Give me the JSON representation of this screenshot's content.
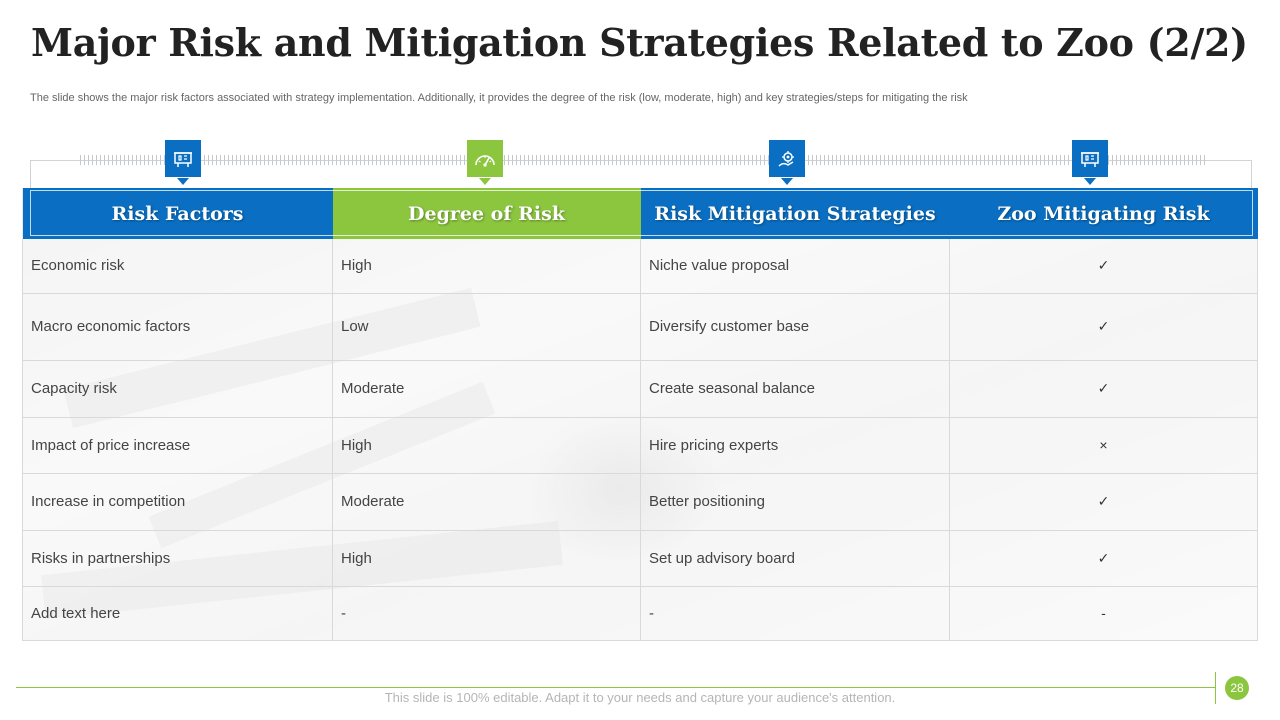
{
  "title": "Major Risk and Mitigation Strategies Related to Zoo (2/2)",
  "subtitle": "The slide shows the major risk factors associated with strategy implementation. Additionally, it provides the degree of the risk (low, moderate, high) and key strategies/steps for mitigating the risk",
  "icons": [
    "zoo-sign-icon",
    "gauge-icon",
    "hand-gear-icon",
    "zoo-sign-icon"
  ],
  "colors": {
    "blue": "#0a6fc2",
    "green": "#8cc63f"
  },
  "table": {
    "headers": [
      "Risk Factors",
      "Degree of Risk",
      "Risk Mitigation Strategies",
      "Zoo Mitigating Risk"
    ],
    "rows": [
      [
        "Economic risk",
        "High",
        "Niche value proposal",
        "✓"
      ],
      [
        "Macro economic factors",
        "Low",
        "Diversify customer base",
        "✓"
      ],
      [
        "Capacity risk",
        "Moderate",
        "Create seasonal balance",
        "✓"
      ],
      [
        "Impact of price increase",
        "High",
        "Hire pricing experts",
        "×"
      ],
      [
        "Increase in competition",
        "Moderate",
        "Better positioning",
        "✓"
      ],
      [
        "Risks in partnerships",
        "High",
        "Set up advisory board",
        "✓"
      ],
      [
        "Add text here",
        "-",
        "-",
        "-"
      ]
    ]
  },
  "footer": {
    "text": "This slide is 100% editable. Adapt it to your needs and capture your audience's attention.",
    "page": "28"
  }
}
